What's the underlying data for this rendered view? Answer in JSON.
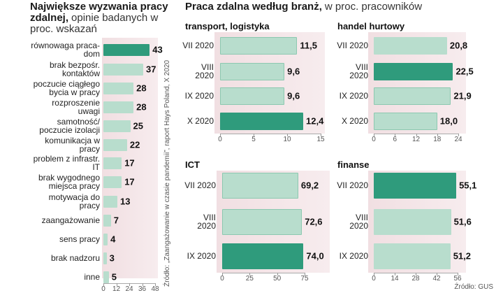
{
  "section": {
    "title": "Praca zdalna według branż,",
    "subtitle": "w proc. pracowników",
    "source": "Źródło: GUS"
  },
  "chart_data": [
    {
      "type": "hbar",
      "title": "Największe wyzwania pracy zdalnej,",
      "subtitle": "opinie badanych w proc. wskazań",
      "source": "Źródło: „Zaangażowanie w czasie pandemii”, raport Hays Poland, X 2020",
      "categories": [
        "równowaga praca-dom",
        "brak bezpośr. kontaktów",
        "poczucie ciągłego bycia w pracy",
        "rozproszenie uwagi",
        "samotność/ poczucie izolacji",
        "komunikacja w pracy",
        "problem z infrastr. IT",
        "brak wygodnego miejsca pracy",
        "motywacja do pracy",
        "zaangażowanie",
        "sens pracy",
        "brak nadzoru",
        "inne"
      ],
      "values": [
        43,
        37,
        28,
        28,
        25,
        22,
        17,
        17,
        13,
        7,
        4,
        3,
        5
      ],
      "colors": [
        "#2f9b7c",
        "#b8ddcd",
        "#b8ddcd",
        "#b8ddcd",
        "#b8ddcd",
        "#b8ddcd",
        "#b8ddcd",
        "#b8ddcd",
        "#b8ddcd",
        "#b8ddcd",
        "#b8ddcd",
        "#b8ddcd",
        "#b8ddcd"
      ],
      "xlim": [
        0,
        48
      ],
      "xticks": [
        0,
        12,
        24,
        36,
        48
      ]
    },
    {
      "type": "hbar",
      "title": "transport, logistyka",
      "categories": [
        "VII 2020",
        "VIII 2020",
        "IX 2020",
        "X 2020"
      ],
      "values": [
        11.5,
        9.6,
        9.6,
        12.4
      ],
      "value_labels": [
        "11,5",
        "9,6",
        "9,6",
        "12,4"
      ],
      "colors": [
        "#b8ddcd",
        "#b8ddcd",
        "#b8ddcd",
        "#2f9b7c"
      ],
      "xlim": [
        0,
        15
      ],
      "xticks": [
        0,
        5,
        10,
        15
      ]
    },
    {
      "type": "hbar",
      "title": "handel hurtowy",
      "categories": [
        "VII 2020",
        "VIII 2020",
        "IX 2020",
        "X 2020"
      ],
      "values": [
        20.8,
        22.5,
        21.9,
        18.0
      ],
      "value_labels": [
        "20,8",
        "22,5",
        "21,9",
        "18,0"
      ],
      "colors": [
        "#b8ddcd",
        "#2f9b7c",
        "#b8ddcd",
        "#b8ddcd"
      ],
      "xlim": [
        0,
        24
      ],
      "xticks": [
        0,
        6,
        12,
        18,
        24
      ]
    },
    {
      "type": "hbar",
      "title": "ICT",
      "categories": [
        "VII 2020",
        "VIII 2020",
        "IX 2020"
      ],
      "values": [
        69.2,
        72.6,
        74.0
      ],
      "value_labels": [
        "69,2",
        "72,6",
        "74,0"
      ],
      "colors": [
        "#b8ddcd",
        "#b8ddcd",
        "#2f9b7c"
      ],
      "xlim": [
        0,
        75
      ],
      "xticks": [
        0,
        25,
        50,
        75
      ]
    },
    {
      "type": "hbar",
      "title": "finanse",
      "categories": [
        "VII 2020",
        "VIII 2020",
        "IX 2020"
      ],
      "values": [
        55.1,
        51.6,
        51.2
      ],
      "value_labels": [
        "55,1",
        "51,6",
        "51,2"
      ],
      "colors": [
        "#2f9b7c",
        "#b8ddcd",
        "#b8ddcd"
      ],
      "xlim": [
        0,
        56
      ],
      "xticks": [
        0,
        14,
        28,
        42,
        56
      ]
    }
  ]
}
